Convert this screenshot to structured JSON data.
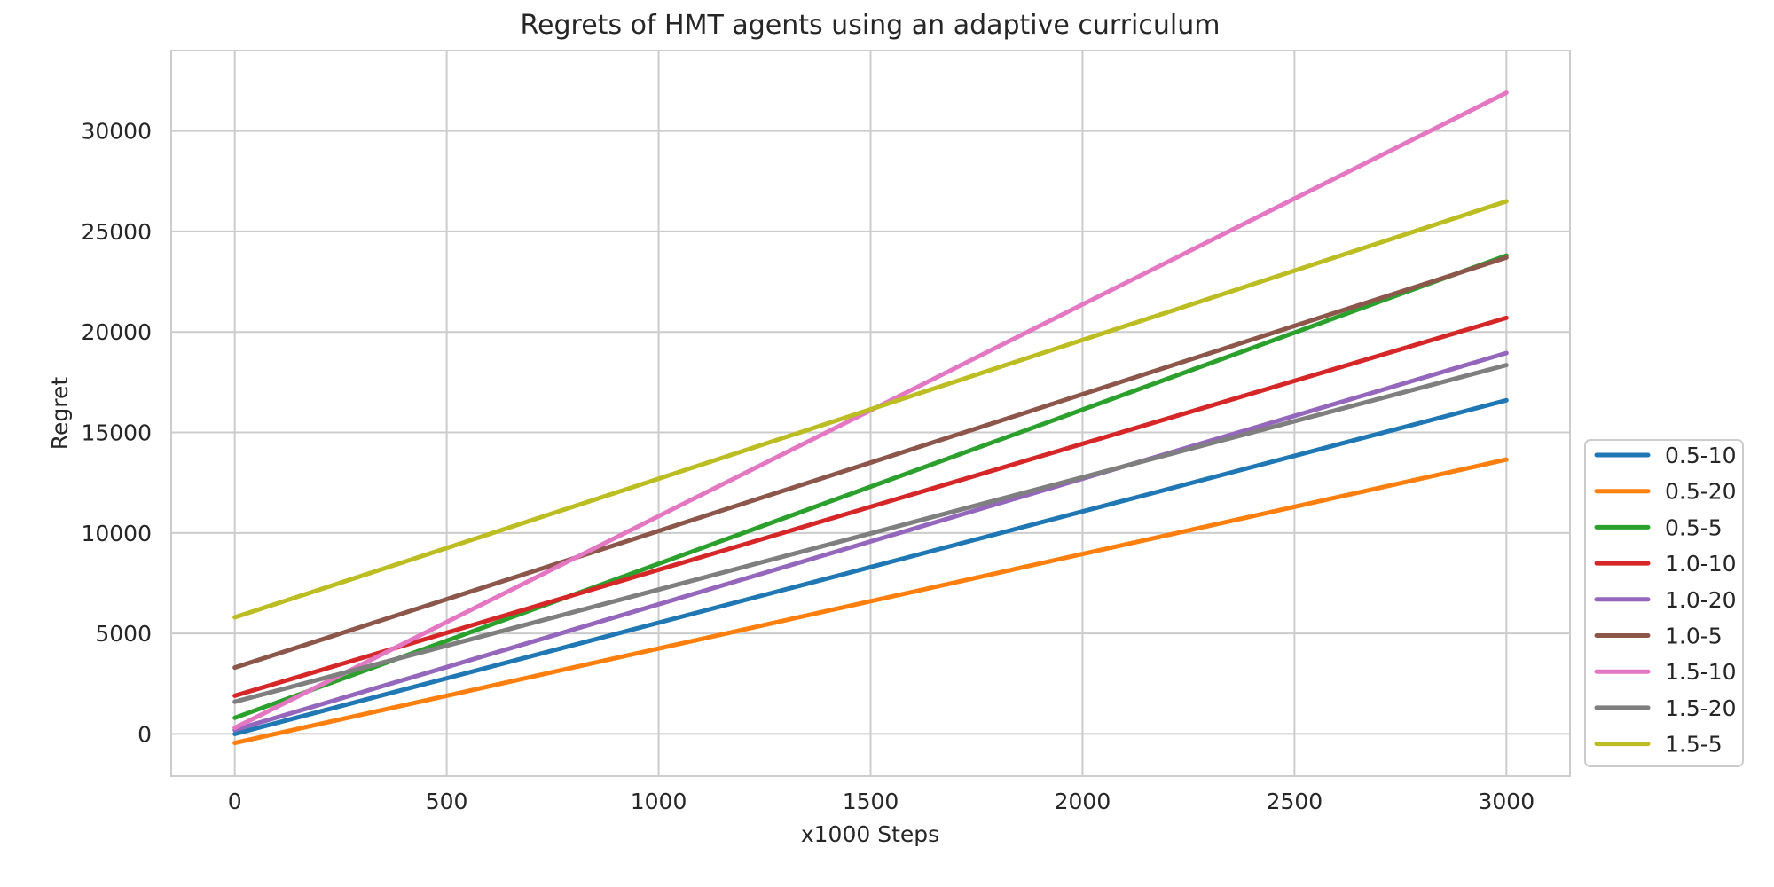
{
  "chart_data": {
    "type": "line",
    "title": "Regrets of HMT agents using an adaptive curriculum",
    "xlabel": "x1000 Steps",
    "ylabel": "Regret",
    "xlim": [
      -150,
      3150
    ],
    "ylim": [
      -2100,
      34000
    ],
    "xticks": [
      0,
      500,
      1000,
      1500,
      2000,
      2500,
      3000
    ],
    "yticks": [
      0,
      5000,
      10000,
      15000,
      20000,
      25000,
      30000
    ],
    "grid": true,
    "legend_position": "right, lower",
    "series": [
      {
        "name": "0.5-10",
        "color": "#1f77b4",
        "x": [
          0,
          3000
        ],
        "y": [
          0,
          16600
        ]
      },
      {
        "name": "0.5-20",
        "color": "#ff7f0e",
        "x": [
          0,
          3000
        ],
        "y": [
          -450,
          13650
        ]
      },
      {
        "name": "0.5-5",
        "color": "#2ca02c",
        "x": [
          0,
          3000
        ],
        "y": [
          800,
          23800
        ]
      },
      {
        "name": "1.0-10",
        "color": "#d62728",
        "x": [
          0,
          3000
        ],
        "y": [
          1900,
          20700
        ]
      },
      {
        "name": "1.0-20",
        "color": "#9467bd",
        "x": [
          0,
          3000
        ],
        "y": [
          200,
          18950
        ]
      },
      {
        "name": "1.0-5",
        "color": "#8c564b",
        "x": [
          0,
          3000
        ],
        "y": [
          3300,
          23700
        ]
      },
      {
        "name": "1.5-10",
        "color": "#e377c2",
        "x": [
          0,
          3000
        ],
        "y": [
          300,
          31900
        ]
      },
      {
        "name": "1.5-20",
        "color": "#7f7f7f",
        "x": [
          0,
          3000
        ],
        "y": [
          1600,
          18350
        ]
      },
      {
        "name": "1.5-5",
        "color": "#bcbd22",
        "x": [
          0,
          3000
        ],
        "y": [
          5800,
          26500
        ]
      }
    ]
  }
}
